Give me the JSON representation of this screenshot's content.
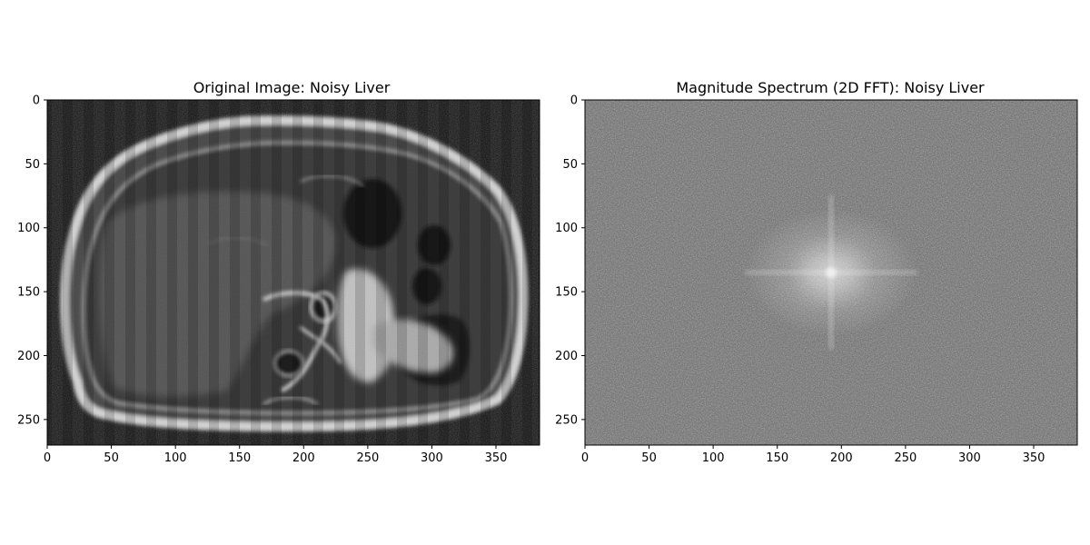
{
  "chart_data": [
    {
      "type": "heatmap",
      "image_kind": "grayscale-image",
      "title": "Original Image: Noisy Liver",
      "colormap": "gray",
      "xlim": [
        0,
        384
      ],
      "ylim": [
        270,
        0
      ],
      "xticks": [
        0,
        50,
        100,
        150,
        200,
        250,
        300,
        350
      ],
      "yticks": [
        0,
        50,
        100,
        150,
        200,
        250
      ],
      "grid": false,
      "content": "axial abdominal MRI slice with speckle noise and faint vertical stripe artifacts"
    },
    {
      "type": "heatmap",
      "image_kind": "grayscale-image",
      "title": "Magnitude Spectrum (2D FFT): Noisy Liver",
      "colormap": "gray",
      "xlim": [
        0,
        384
      ],
      "ylim": [
        270,
        0
      ],
      "xticks": [
        0,
        50,
        100,
        150,
        200,
        250,
        300,
        350
      ],
      "yticks": [
        0,
        50,
        100,
        150,
        200,
        250
      ],
      "grid": false,
      "content": "mid-gray noisy spectrum with a bright low-frequency glow and cross centered near (192, 135)"
    }
  ],
  "colors": {
    "background": "#ffffff",
    "image_dark": "#141414",
    "image_bright": "#d8d8d8",
    "spectrum_gray": "#6e6e6e"
  }
}
